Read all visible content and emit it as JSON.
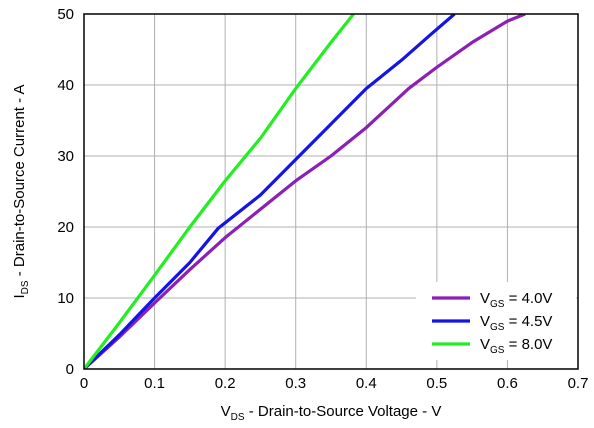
{
  "chart_data": {
    "type": "line",
    "title": "",
    "xlabel": {
      "pre": "V",
      "sub": "DS",
      "post": " - Drain-to-Source Voltage - V"
    },
    "ylabel": {
      "pre": "I",
      "sub": "DS",
      "post": " - Drain-to-Source Current - A"
    },
    "xlim": [
      0,
      0.7
    ],
    "ylim": [
      0,
      50
    ],
    "xticks": [
      "0",
      "0.1",
      "0.2",
      "0.3",
      "0.4",
      "0.5",
      "0.6",
      "0.7"
    ],
    "yticks": [
      "0",
      "10",
      "20",
      "30",
      "40",
      "50"
    ],
    "grid": true,
    "legend_position": "bottom-right",
    "series": [
      {
        "name": "VGS = 4.0V",
        "legend": {
          "pre": "V",
          "sub": "GS",
          "post": " = 4.0V"
        },
        "color": "#8b1fb6",
        "points": [
          [
            0,
            0
          ],
          [
            0.05,
            4.5
          ],
          [
            0.1,
            9.3
          ],
          [
            0.15,
            14.0
          ],
          [
            0.2,
            18.5
          ],
          [
            0.25,
            22.5
          ],
          [
            0.3,
            26.5
          ],
          [
            0.35,
            30.0
          ],
          [
            0.4,
            34.0
          ],
          [
            0.46,
            39.5
          ],
          [
            0.5,
            42.5
          ],
          [
            0.55,
            46.0
          ],
          [
            0.6,
            49.0
          ],
          [
            0.625,
            50.0
          ]
        ]
      },
      {
        "name": "VGS = 4.5V",
        "legend": {
          "pre": "V",
          "sub": "GS",
          "post": " = 4.5V"
        },
        "color": "#1414e6",
        "points": [
          [
            0,
            0
          ],
          [
            0.05,
            4.8
          ],
          [
            0.1,
            10.0
          ],
          [
            0.15,
            15.0
          ],
          [
            0.19,
            19.8
          ],
          [
            0.25,
            24.5
          ],
          [
            0.3,
            29.5
          ],
          [
            0.35,
            34.5
          ],
          [
            0.4,
            39.5
          ],
          [
            0.45,
            43.5
          ],
          [
            0.49,
            47.0
          ],
          [
            0.525,
            50.0
          ]
        ]
      },
      {
        "name": "VGS = 8.0V",
        "legend": {
          "pre": "V",
          "sub": "GS",
          "post": " = 8.0V"
        },
        "color": "#22ee22",
        "points": [
          [
            0,
            0
          ],
          [
            0.05,
            6.5
          ],
          [
            0.1,
            13.2
          ],
          [
            0.15,
            20.0
          ],
          [
            0.2,
            26.5
          ],
          [
            0.25,
            32.5
          ],
          [
            0.3,
            39.5
          ],
          [
            0.35,
            46.0
          ],
          [
            0.382,
            50.0
          ]
        ]
      }
    ]
  }
}
